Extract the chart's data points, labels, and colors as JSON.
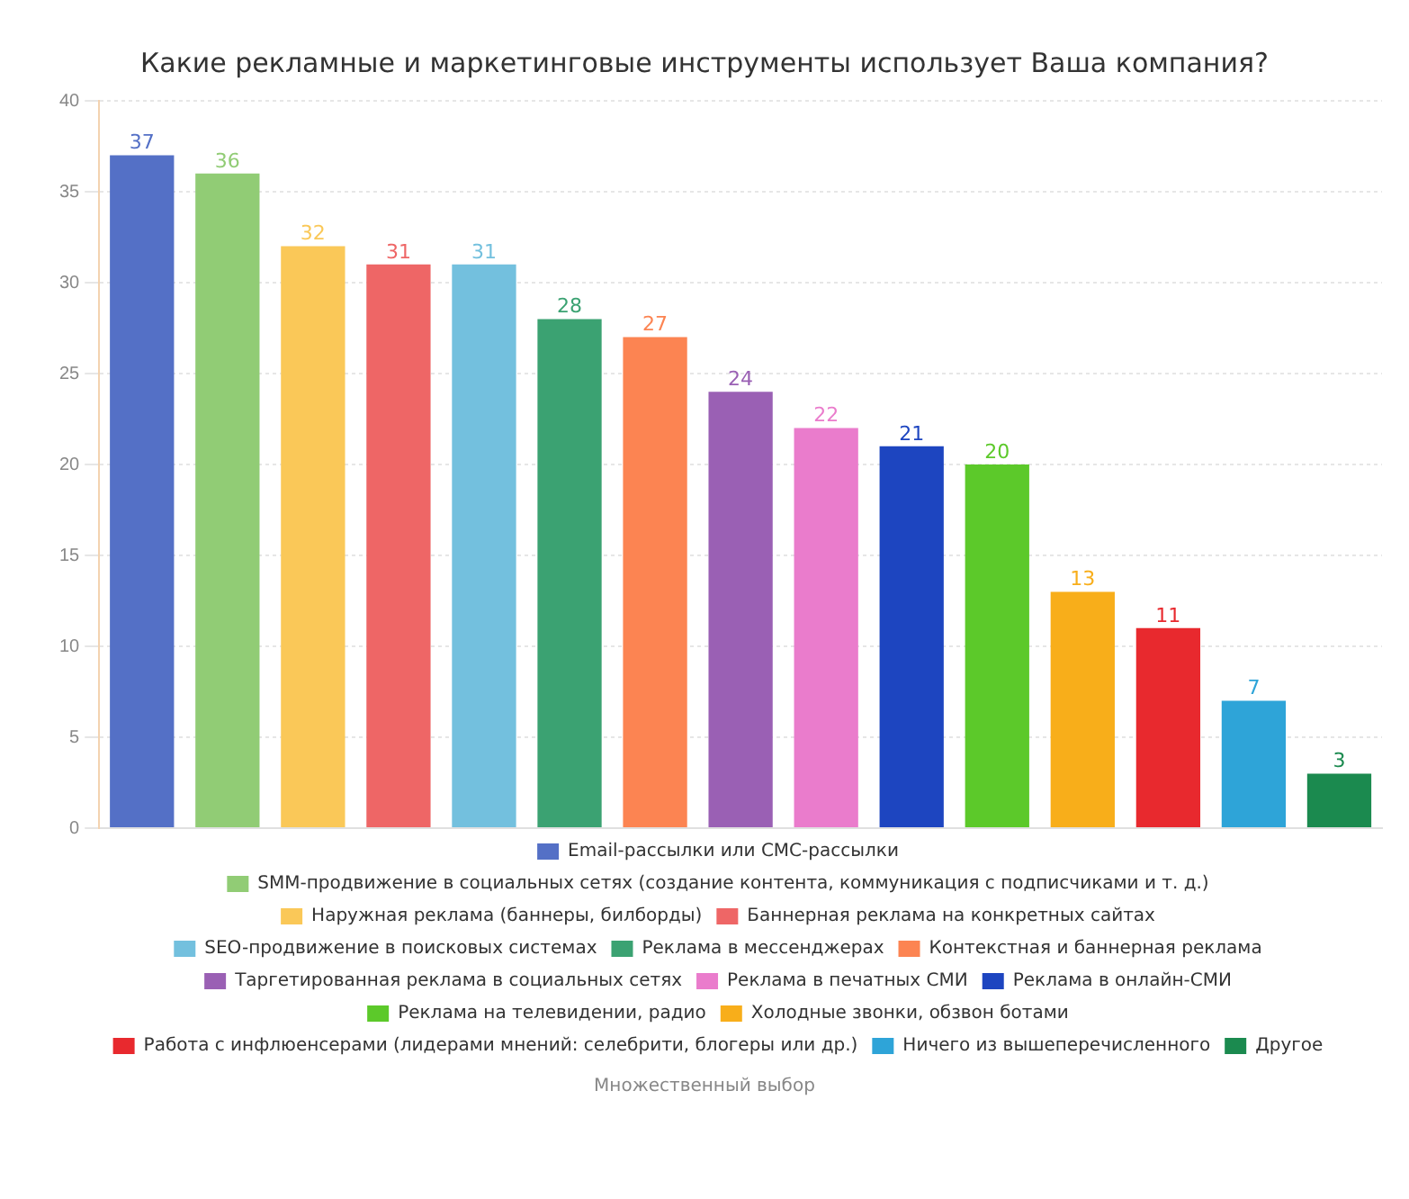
{
  "chart_data": {
    "type": "bar",
    "title": "Какие рекламные и маркетинговые инструменты использует Ваша компания?",
    "categories": [
      null,
      null,
      null,
      null,
      null,
      null,
      null,
      null,
      null,
      null,
      null,
      null,
      null,
      null,
      null
    ],
    "series": [
      {
        "name": "Email-рассылки или СМС-рассылки",
        "color": "#5470c6",
        "values": [
          37,
          null,
          null,
          null,
          null,
          null,
          null,
          null,
          null,
          null,
          null,
          null,
          null,
          null,
          null
        ]
      },
      {
        "name": "SMM-продвижение в социальных сетях (создание контента, коммуникация с подписчиками и т. д.)",
        "color": "#91cc75",
        "values": [
          null,
          36,
          null,
          null,
          null,
          null,
          null,
          null,
          null,
          null,
          null,
          null,
          null,
          null,
          null
        ]
      },
      {
        "name": "Наружная реклама (баннеры, билборды)",
        "color": "#fac858",
        "values": [
          null,
          null,
          32,
          null,
          null,
          null,
          null,
          null,
          null,
          null,
          null,
          null,
          null,
          null,
          null
        ]
      },
      {
        "name": "Баннерная реклама на конкретных сайтах",
        "color": "#ee6666",
        "values": [
          null,
          null,
          null,
          31,
          null,
          null,
          null,
          null,
          null,
          null,
          null,
          null,
          null,
          null,
          null
        ]
      },
      {
        "name": "SEO-продвижение в поисковых системах",
        "color": "#73c0de",
        "values": [
          null,
          null,
          null,
          null,
          31,
          null,
          null,
          null,
          null,
          null,
          null,
          null,
          null,
          null,
          null
        ]
      },
      {
        "name": "Реклама в мессенджерах",
        "color": "#3ba272",
        "values": [
          null,
          null,
          null,
          null,
          null,
          28,
          null,
          null,
          null,
          null,
          null,
          null,
          null,
          null,
          null
        ]
      },
      {
        "name": "Контекстная и баннерная реклама",
        "color": "#fc8452",
        "values": [
          null,
          null,
          null,
          null,
          null,
          null,
          27,
          null,
          null,
          null,
          null,
          null,
          null,
          null,
          null
        ]
      },
      {
        "name": "Таргетированная реклама в социальных сетях",
        "color": "#9a60b4",
        "values": [
          null,
          null,
          null,
          null,
          null,
          null,
          null,
          24,
          null,
          null,
          null,
          null,
          null,
          null,
          null
        ]
      },
      {
        "name": "Реклама в печатных СМИ",
        "color": "#ea7ccc",
        "values": [
          null,
          null,
          null,
          null,
          null,
          null,
          null,
          null,
          22,
          null,
          null,
          null,
          null,
          null,
          null
        ]
      },
      {
        "name": "Реклама в онлайн-СМИ",
        "color": "#1d45c0",
        "values": [
          null,
          null,
          null,
          null,
          null,
          null,
          null,
          null,
          null,
          21,
          null,
          null,
          null,
          null,
          null
        ]
      },
      {
        "name": "Реклама на телевидении, радио",
        "color": "#5cc92a",
        "values": [
          null,
          null,
          null,
          null,
          null,
          null,
          null,
          null,
          null,
          null,
          20,
          null,
          null,
          null,
          null
        ]
      },
      {
        "name": "Холодные звонки, обзвон ботами",
        "color": "#f8ae1a",
        "values": [
          null,
          null,
          null,
          null,
          null,
          null,
          null,
          null,
          null,
          null,
          null,
          13,
          null,
          null,
          null
        ]
      },
      {
        "name": "Работа с инфлюенсерами (лидерами мнений: селебрити, блогеры или др.)",
        "color": "#e8292e",
        "values": [
          null,
          null,
          null,
          null,
          null,
          null,
          null,
          null,
          null,
          null,
          null,
          null,
          11,
          null,
          null
        ]
      },
      {
        "name": "Ничего из вышеперечисленного",
        "color": "#2ea4d8",
        "values": [
          null,
          null,
          null,
          null,
          null,
          null,
          null,
          null,
          null,
          null,
          null,
          null,
          null,
          7,
          null
        ]
      },
      {
        "name": "Другое",
        "color": "#1b8a4f",
        "values": [
          null,
          null,
          null,
          null,
          null,
          null,
          null,
          null,
          null,
          null,
          null,
          null,
          null,
          null,
          3
        ]
      }
    ],
    "ylim": [
      0,
      40
    ],
    "yticks": [
      0,
      5,
      10,
      15,
      20,
      25,
      30,
      35,
      40
    ],
    "grid": "y",
    "tick_labels": "y",
    "legend": "bottom",
    "data_labels": true,
    "annotations": [
      "Множественный выбор"
    ]
  }
}
